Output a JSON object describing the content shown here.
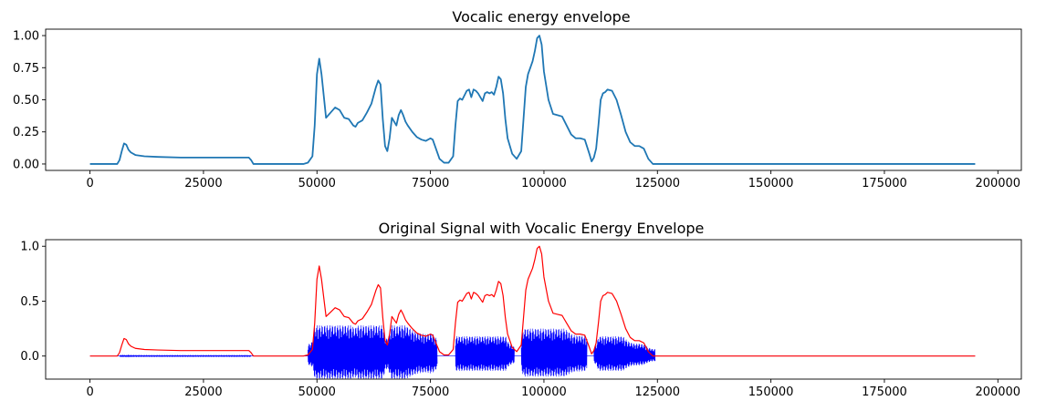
{
  "chart_data": [
    {
      "type": "line",
      "title": "Vocalic energy envelope",
      "xlabel": "",
      "ylabel": "",
      "xlim": [
        -9770,
        205170
      ],
      "ylim": [
        -0.05,
        1.05
      ],
      "xticks": [
        0,
        25000,
        50000,
        75000,
        100000,
        125000,
        150000,
        175000,
        200000
      ],
      "yticks": [
        0.0,
        0.25,
        0.5,
        0.75,
        1.0
      ],
      "ytick_labels": [
        "0.00",
        "0.25",
        "0.50",
        "0.75",
        "1.00"
      ],
      "grid": false,
      "series": [
        {
          "color": "#1f77b4",
          "x": [
            0,
            6000,
            6500,
            7000,
            7500,
            8000,
            8500,
            9000,
            10000,
            12000,
            15000,
            20000,
            25000,
            30000,
            34000,
            35000,
            35500,
            36000,
            40000,
            45000,
            47000,
            48000,
            49000,
            49500,
            50000,
            50500,
            51000,
            52000,
            53000,
            54000,
            55000,
            56000,
            57000,
            58000,
            58500,
            59000,
            60000,
            61000,
            62000,
            63000,
            63500,
            64000,
            64500,
            65000,
            65500,
            66000,
            66500,
            67000,
            67500,
            68000,
            68500,
            69000,
            69500,
            70000,
            71000,
            72000,
            73000,
            74000,
            75000,
            75500,
            76000,
            77000,
            78000,
            79000,
            80000,
            80500,
            81000,
            81500,
            82000,
            83000,
            83500,
            84000,
            84500,
            85000,
            85500,
            86000,
            86500,
            87000,
            87500,
            88000,
            88500,
            89000,
            89500,
            90000,
            90500,
            91000,
            91500,
            92000,
            93000,
            94000,
            95000,
            95500,
            96000,
            96500,
            97000,
            97500,
            98000,
            98500,
            99000,
            99500,
            100000,
            101000,
            102000,
            103000,
            104000,
            105000,
            106000,
            107000,
            108000,
            109000,
            110000,
            110500,
            111000,
            111500,
            112000,
            112500,
            113000,
            113500,
            114000,
            115000,
            116000,
            117000,
            118000,
            119000,
            120000,
            121000,
            122000,
            123000,
            124000,
            124500,
            130000,
            150000,
            175000,
            195000
          ],
          "y": [
            0.0,
            0.0,
            0.03,
            0.1,
            0.16,
            0.15,
            0.11,
            0.09,
            0.07,
            0.06,
            0.055,
            0.05,
            0.05,
            0.05,
            0.05,
            0.05,
            0.03,
            0.0,
            0.0,
            0.0,
            0.0,
            0.01,
            0.06,
            0.3,
            0.7,
            0.82,
            0.7,
            0.36,
            0.4,
            0.44,
            0.42,
            0.36,
            0.35,
            0.3,
            0.29,
            0.32,
            0.34,
            0.4,
            0.47,
            0.6,
            0.65,
            0.62,
            0.35,
            0.14,
            0.1,
            0.2,
            0.36,
            0.33,
            0.3,
            0.38,
            0.42,
            0.38,
            0.33,
            0.3,
            0.25,
            0.21,
            0.19,
            0.18,
            0.2,
            0.19,
            0.14,
            0.04,
            0.01,
            0.01,
            0.06,
            0.3,
            0.49,
            0.51,
            0.5,
            0.57,
            0.58,
            0.52,
            0.58,
            0.57,
            0.55,
            0.52,
            0.49,
            0.55,
            0.56,
            0.55,
            0.56,
            0.54,
            0.6,
            0.68,
            0.66,
            0.55,
            0.35,
            0.2,
            0.08,
            0.04,
            0.1,
            0.35,
            0.6,
            0.7,
            0.75,
            0.8,
            0.88,
            0.98,
            1.0,
            0.93,
            0.72,
            0.5,
            0.39,
            0.38,
            0.37,
            0.3,
            0.23,
            0.2,
            0.2,
            0.19,
            0.08,
            0.02,
            0.05,
            0.12,
            0.3,
            0.5,
            0.55,
            0.56,
            0.58,
            0.57,
            0.5,
            0.38,
            0.25,
            0.17,
            0.14,
            0.14,
            0.12,
            0.04,
            0.0,
            0.0,
            0.0,
            0.0,
            0.0,
            0.0
          ]
        }
      ]
    },
    {
      "type": "line",
      "title": "Original Signal with Vocalic Energy Envelope",
      "xlabel": "",
      "ylabel": "",
      "xlim": [
        -9770,
        205170
      ],
      "ylim": [
        -0.21,
        1.06
      ],
      "xticks": [
        0,
        25000,
        50000,
        75000,
        100000,
        125000,
        150000,
        175000,
        200000
      ],
      "yticks": [
        0.0,
        0.5,
        1.0
      ],
      "ytick_labels": [
        "0.0",
        "0.5",
        "1.0"
      ],
      "grid": false,
      "series": [
        {
          "color": "#0000ff",
          "kind": "signal",
          "segments": [
            {
              "x0": 6500,
              "x1": 35500,
              "amp": 0.01
            },
            {
              "x0": 48000,
              "x1": 76500,
              "amp": 0.28
            },
            {
              "x0": 80500,
              "x1": 93500,
              "amp": 0.18
            },
            {
              "x0": 95000,
              "x1": 109500,
              "amp": 0.25
            },
            {
              "x0": 111000,
              "x1": 124500,
              "amp": 0.18
            }
          ]
        },
        {
          "color": "#ff0000",
          "kind": "envelope",
          "same_as_series_of_chart": 0
        }
      ]
    }
  ]
}
